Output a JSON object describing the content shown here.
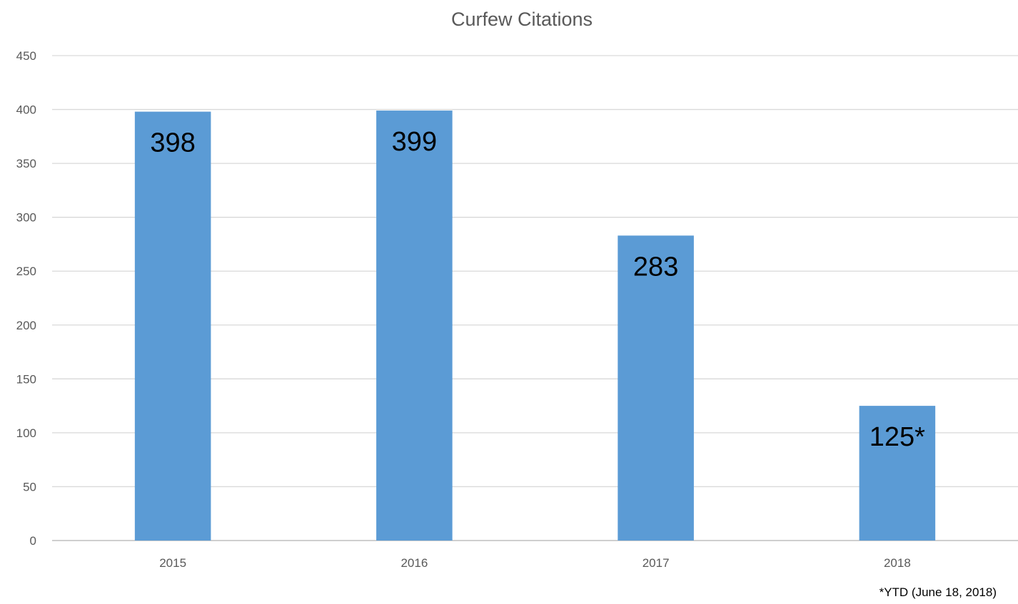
{
  "chart_data": {
    "type": "bar",
    "title": "Curfew Citations",
    "xlabel": "",
    "ylabel": "",
    "categories": [
      "2015",
      "2016",
      "2017",
      "2018"
    ],
    "values": [
      398,
      399,
      283,
      125
    ],
    "data_labels": [
      "398",
      "399",
      "283",
      "125*"
    ],
    "ylim": [
      0,
      450
    ],
    "yticks": [
      0,
      50,
      100,
      150,
      200,
      250,
      300,
      350,
      400,
      450
    ],
    "grid": true,
    "legend": "none",
    "bar_color": "#5b9bd5",
    "footnote": "*YTD (June 18, 2018)"
  }
}
